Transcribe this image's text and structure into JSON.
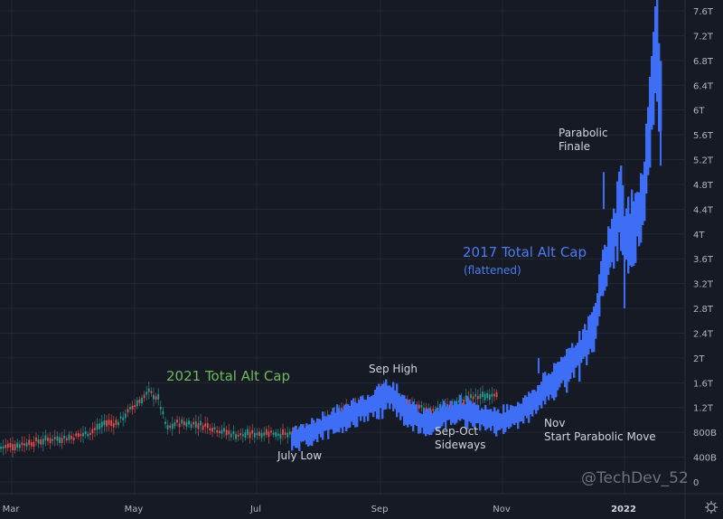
{
  "chart_data": {
    "type": "line",
    "title": "",
    "xlabel": "",
    "ylabel": "",
    "ylim": [
      0,
      7.6
    ],
    "y_unit": "T",
    "grid": true,
    "y_ticks": [
      "7.6T",
      "7.2T",
      "6.8T",
      "6.4T",
      "6T",
      "5.6T",
      "5.2T",
      "4.8T",
      "4.4T",
      "4T",
      "3.6T",
      "3.2T",
      "2.8T",
      "2.4T",
      "2T",
      "1.6T",
      "1.2T",
      "800B",
      "400B",
      "0"
    ],
    "y_tick_values": [
      7.6,
      7.2,
      6.8,
      6.4,
      6.0,
      5.6,
      5.2,
      4.8,
      4.4,
      4.0,
      3.6,
      3.2,
      2.8,
      2.4,
      2.0,
      1.6,
      1.2,
      0.8,
      0.4,
      0
    ],
    "x_ticks": [
      {
        "label": "Mar",
        "x": 12
      },
      {
        "label": "May",
        "x": 148
      },
      {
        "label": "Jul",
        "x": 283
      },
      {
        "label": "Sep",
        "x": 420
      },
      {
        "label": "Nov",
        "x": 555
      },
      {
        "label": "2022",
        "x": 690,
        "bold": true
      }
    ],
    "series": [
      {
        "name": "2021 Total Alt Cap",
        "style": "candlestick",
        "color_up": "#26a69a",
        "color_down": "#ef5350",
        "x": [
          0,
          20,
          40,
          60,
          80,
          100,
          115,
          130,
          150,
          165,
          175,
          185,
          195,
          210,
          230,
          250,
          265,
          280,
          300,
          320,
          340,
          360,
          380,
          400,
          415,
          425,
          440,
          460,
          480,
          500,
          520,
          540,
          550
        ],
        "values": [
          0.55,
          0.6,
          0.65,
          0.7,
          0.72,
          0.8,
          0.95,
          0.95,
          1.25,
          1.45,
          1.35,
          0.85,
          0.95,
          0.95,
          0.9,
          0.8,
          0.75,
          0.78,
          0.8,
          0.75,
          0.8,
          1.0,
          1.15,
          1.25,
          1.3,
          1.5,
          1.3,
          1.2,
          1.15,
          1.25,
          1.35,
          1.4,
          1.45
        ]
      },
      {
        "name": "2017 Total Alt Cap (flattened)",
        "style": "band",
        "color": "#3d6ef5",
        "x": [
          322,
          340,
          360,
          380,
          400,
          420,
          430,
          445,
          460,
          470,
          490,
          510,
          530,
          550,
          570,
          590,
          600,
          610,
          620,
          630,
          640,
          650,
          660,
          665,
          670,
          680,
          685,
          690,
          700,
          710,
          715,
          720,
          725,
          730
        ],
        "values": [
          0.7,
          0.8,
          0.95,
          1.05,
          1.2,
          1.35,
          1.45,
          1.2,
          1.05,
          0.95,
          1.1,
          1.15,
          1.05,
          1.0,
          1.1,
          1.3,
          1.5,
          1.6,
          1.8,
          1.95,
          2.1,
          2.3,
          2.7,
          3.4,
          3.6,
          4.1,
          4.7,
          4.0,
          4.1,
          4.6,
          5.2,
          6.5,
          7.0,
          6.3
        ]
      }
    ],
    "annotations": [
      {
        "text": "2021 Total Alt Cap",
        "color": "#6fb85a",
        "x": 184,
        "y": 407,
        "size": 15
      },
      {
        "text": "Sep High",
        "color": "#d1d4dc",
        "x": 408,
        "y": 401,
        "size": 12
      },
      {
        "text": "July Low",
        "color": "#d1d4dc",
        "x": 307,
        "y": 497,
        "size": 12
      },
      {
        "text": "Sep-Oct\nSideways",
        "color": "#d1d4dc",
        "x": 481,
        "y": 470,
        "size": 12
      },
      {
        "text": "Nov\nStart Parabolic Move",
        "color": "#d1d4dc",
        "x": 602,
        "y": 461,
        "size": 12
      },
      {
        "text": "2017 Total Alt Cap",
        "color": "#4d7cf0",
        "x": 512,
        "y": 270,
        "size": 15
      },
      {
        "text": "(flattened)",
        "color": "#4d7cf0",
        "x": 513,
        "y": 292,
        "size": 12
      },
      {
        "text": "Parabolic\nFinale",
        "color": "#d1d4dc",
        "x": 618,
        "y": 140,
        "size": 12
      }
    ],
    "watermark": "@TechDev_52"
  },
  "colors": {
    "background": "#161a25",
    "grid": "#232735",
    "axis_text": "#b2b5be",
    "up": "#26a69a",
    "down": "#ef5350",
    "alt2017": "#3d6ef5"
  },
  "axis": {
    "settings_icon": "gear-icon"
  }
}
